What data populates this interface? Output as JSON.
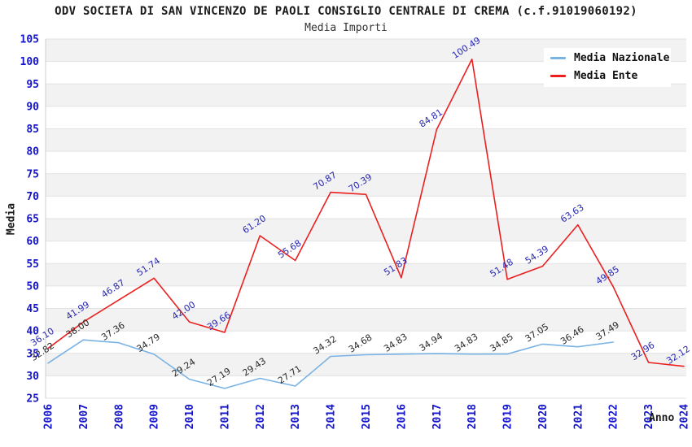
{
  "chart_data": {
    "type": "line",
    "title": "ODV SOCIETA DI SAN VINCENZO DE PAOLI CONSIGLIO CENTRALE DI CREMA (c.f.91019060192)",
    "subtitle": "Media Importi",
    "xlabel": "Anno",
    "ylabel": "Media",
    "ylim": [
      25,
      105
    ],
    "ytick_step": 5,
    "grid": "horizontal-gridlines-with-alternating-bands",
    "legend_position": "top-right",
    "axis_tick_color": "#1414cc",
    "band_color": "#f2f2f2",
    "gridline_color": "#e2e2e2",
    "categories": [
      "2006",
      "2007",
      "2008",
      "2009",
      "2010",
      "2011",
      "2012",
      "2013",
      "2014",
      "2015",
      "2016",
      "2017",
      "2018",
      "2019",
      "2020",
      "2021",
      "2022",
      "2023",
      "2024"
    ],
    "series": [
      {
        "name": "Media Nazionale",
        "color": "#79b2e5",
        "label_color": "#2b2b2b",
        "values": [
          32.82,
          38.0,
          37.36,
          34.79,
          29.24,
          27.19,
          29.43,
          27.71,
          34.32,
          34.68,
          34.83,
          34.94,
          34.83,
          34.85,
          37.05,
          36.46,
          37.49,
          null,
          null
        ]
      },
      {
        "name": "Media Ente",
        "color": "#ea2020",
        "label_color": "#2828b4",
        "values": [
          36.1,
          41.99,
          46.87,
          51.74,
          42.0,
          39.66,
          61.2,
          55.68,
          70.87,
          70.39,
          51.83,
          84.81,
          100.49,
          51.48,
          54.39,
          63.63,
          49.85,
          32.96,
          32.12
        ]
      }
    ]
  }
}
